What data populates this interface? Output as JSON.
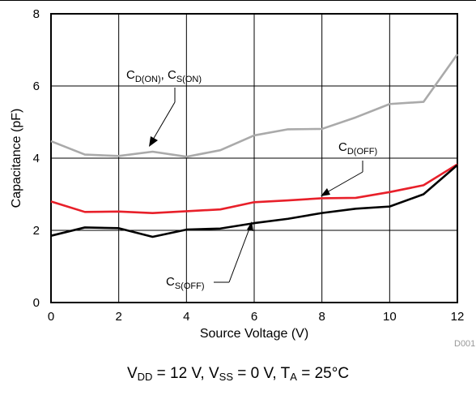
{
  "chart_data": {
    "type": "line",
    "xlabel": "Source Voltage (V)",
    "ylabel": "Capacitance (pF)",
    "xlim": [
      0,
      12
    ],
    "ylim": [
      0,
      8
    ],
    "xticks": [
      "0",
      "2",
      "4",
      "6",
      "8",
      "10",
      "12"
    ],
    "yticks": [
      "0",
      "2",
      "4",
      "6",
      "8"
    ],
    "grid": true,
    "figure_id": "D001",
    "x": [
      0,
      1,
      2,
      3,
      4,
      5,
      6,
      7,
      8,
      9,
      10,
      11,
      12
    ],
    "series": [
      {
        "label_main": "C",
        "label_sub": "D(ON)",
        "label_sep": ", ",
        "label_main2": "C",
        "label_sub2": "S(ON)",
        "color": "#aaaaaa",
        "values": [
          4.47,
          4.1,
          4.06,
          4.18,
          4.04,
          4.22,
          4.63,
          4.8,
          4.81,
          5.13,
          5.5,
          5.56,
          6.88
        ]
      },
      {
        "label_main": "C",
        "label_sub": "D(OFF)",
        "color": "#e8202a",
        "values": [
          2.8,
          2.51,
          2.52,
          2.48,
          2.53,
          2.58,
          2.78,
          2.83,
          2.89,
          2.9,
          3.06,
          3.25,
          3.83
        ]
      },
      {
        "label_main": "C",
        "label_sub": "S(OFF)",
        "color": "#000000",
        "values": [
          1.85,
          2.08,
          2.06,
          1.82,
          2.02,
          2.05,
          2.2,
          2.32,
          2.48,
          2.6,
          2.66,
          3.0,
          3.81
        ]
      }
    ]
  },
  "caption": {
    "vdd_main": "V",
    "vdd_sub": "DD",
    "vdd_val": " = 12 V, ",
    "vss_main": "V",
    "vss_sub": "SS",
    "vss_val": " = 0 V, ",
    "ta_main": "T",
    "ta_sub": "A",
    "ta_val": " = 25°C"
  }
}
